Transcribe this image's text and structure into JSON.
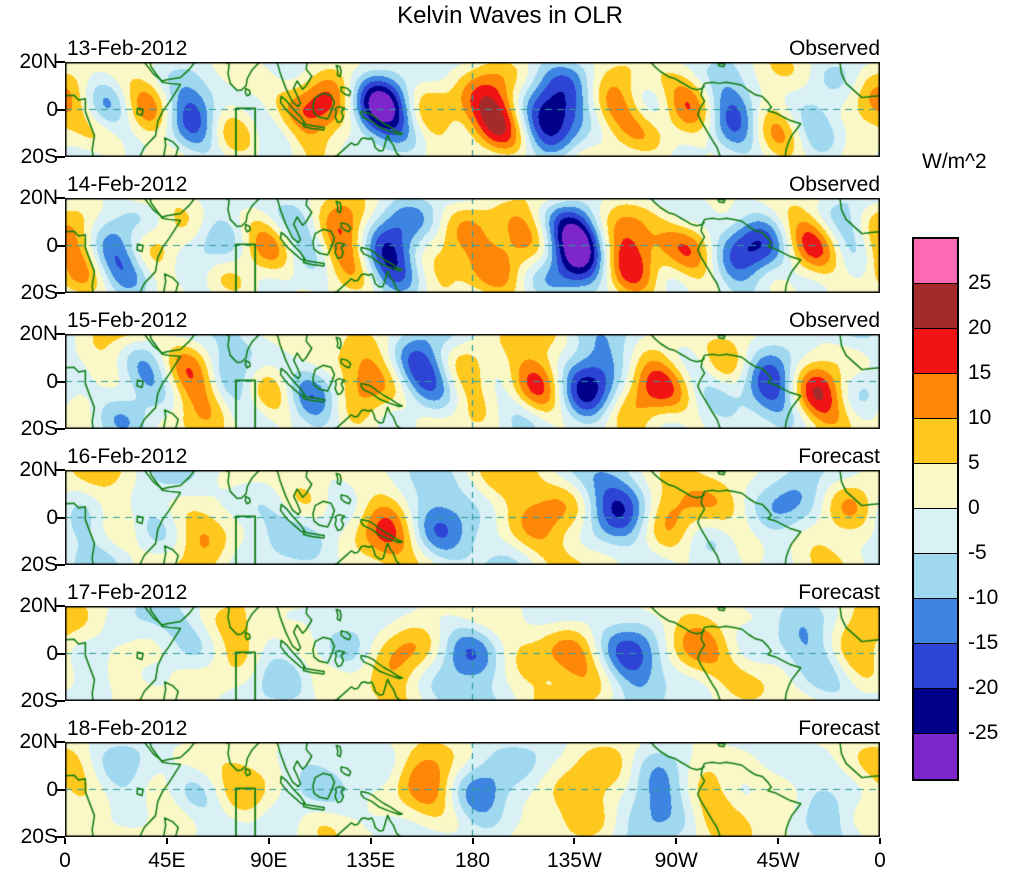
{
  "chart_data": {
    "type": "heatmap",
    "title": "Kelvin Waves in OLR",
    "panels": [
      {
        "date": "13-Feb-2012",
        "label": "Observed"
      },
      {
        "date": "14-Feb-2012",
        "label": "Observed"
      },
      {
        "date": "15-Feb-2012",
        "label": "Observed"
      },
      {
        "date": "16-Feb-2012",
        "label": "Forecast"
      },
      {
        "date": "17-Feb-2012",
        "label": "Forecast"
      },
      {
        "date": "18-Feb-2012",
        "label": "Forecast"
      }
    ],
    "y_tick_labels": [
      "20N",
      "0",
      "20S"
    ],
    "x_tick_labels": [
      "0",
      "45E",
      "90E",
      "135E",
      "180",
      "135W",
      "90W",
      "45W",
      "0"
    ],
    "axes": {
      "x_range_deg": [
        0,
        360
      ],
      "y_range_deg": [
        -20,
        20
      ],
      "equator_dashed_line": true,
      "dateline_dashed_line": true
    },
    "colorbar": {
      "unit": "W/m^2",
      "levels": [
        25,
        20,
        15,
        10,
        5,
        0,
        -5,
        -10,
        -15,
        -20,
        -25
      ],
      "contour_interval": 5,
      "colors_top_to_bottom": [
        "#FF69B4",
        "#A52A2A",
        "#F01414",
        "#FF8708",
        "#FFC81E",
        "#FBF8C7",
        "#D9F1F5",
        "#A0D8EF",
        "#3D85E0",
        "#2E44D4",
        "#00008B",
        "#7D26CD"
      ]
    },
    "map_overlay": {
      "coastline_color": "#0E7C10",
      "region_box_lon": [
        75.5,
        84
      ],
      "region_box_lat": [
        -7.5,
        0.5
      ]
    }
  }
}
